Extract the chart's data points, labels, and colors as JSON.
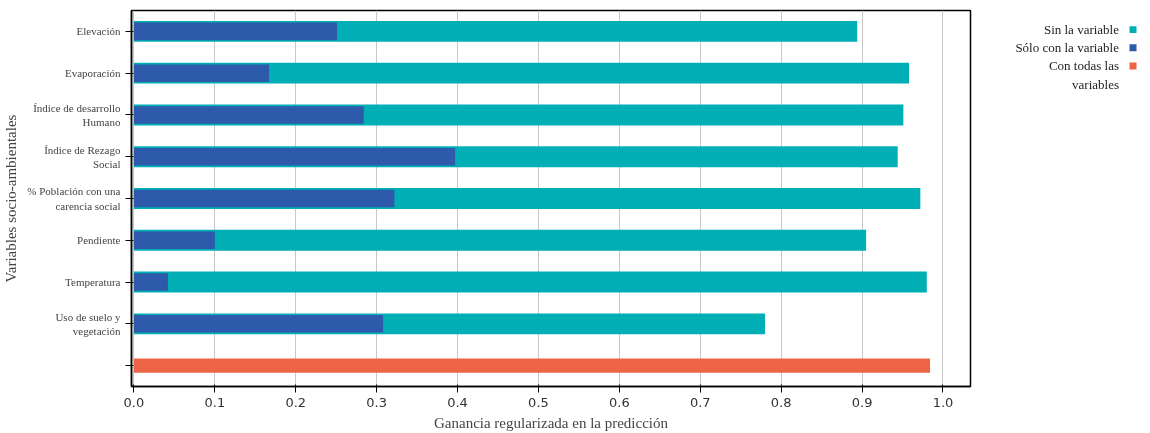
{
  "chart_data": {
    "type": "bar",
    "orientation": "horizontal",
    "xlabel": "Ganancia regularizada en la predicción",
    "ylabel": "Variables socio-ambientales",
    "categories": [
      "Elevación",
      "Evaporación",
      "Índice de desarrollo Humano",
      "Índice de Rezago Social",
      "% Población con una carencia social",
      "Pendiente",
      "Temperatura",
      "Uso de suelo y vegetación",
      null
    ],
    "series": [
      {
        "name": "Sin la variable",
        "color": "#00aeb5",
        "values": [
          0.894,
          0.958,
          0.951,
          0.944,
          0.972,
          0.905,
          0.98,
          0.78,
          null
        ]
      },
      {
        "name": "Sólo con la variable",
        "color": "#2e5aac",
        "values": [
          0.251,
          0.167,
          0.284,
          0.397,
          0.322,
          0.1,
          0.042,
          0.308,
          null
        ]
      },
      {
        "name": "Con todas las variables",
        "color": "#ee6446",
        "values": [
          null,
          null,
          null,
          null,
          null,
          null,
          null,
          null,
          0.984
        ]
      }
    ],
    "xlim": [
      -0.003,
      1.034
    ],
    "xticks": [
      {
        "value": 0,
        "label": "0.0"
      },
      0.1,
      0.2,
      0.3,
      0.4,
      0.5,
      0.6,
      0.7,
      0.8,
      0.9,
      {
        "value": 1,
        "label": "1.0"
      }
    ],
    "grid": "x",
    "legend": "top right"
  }
}
